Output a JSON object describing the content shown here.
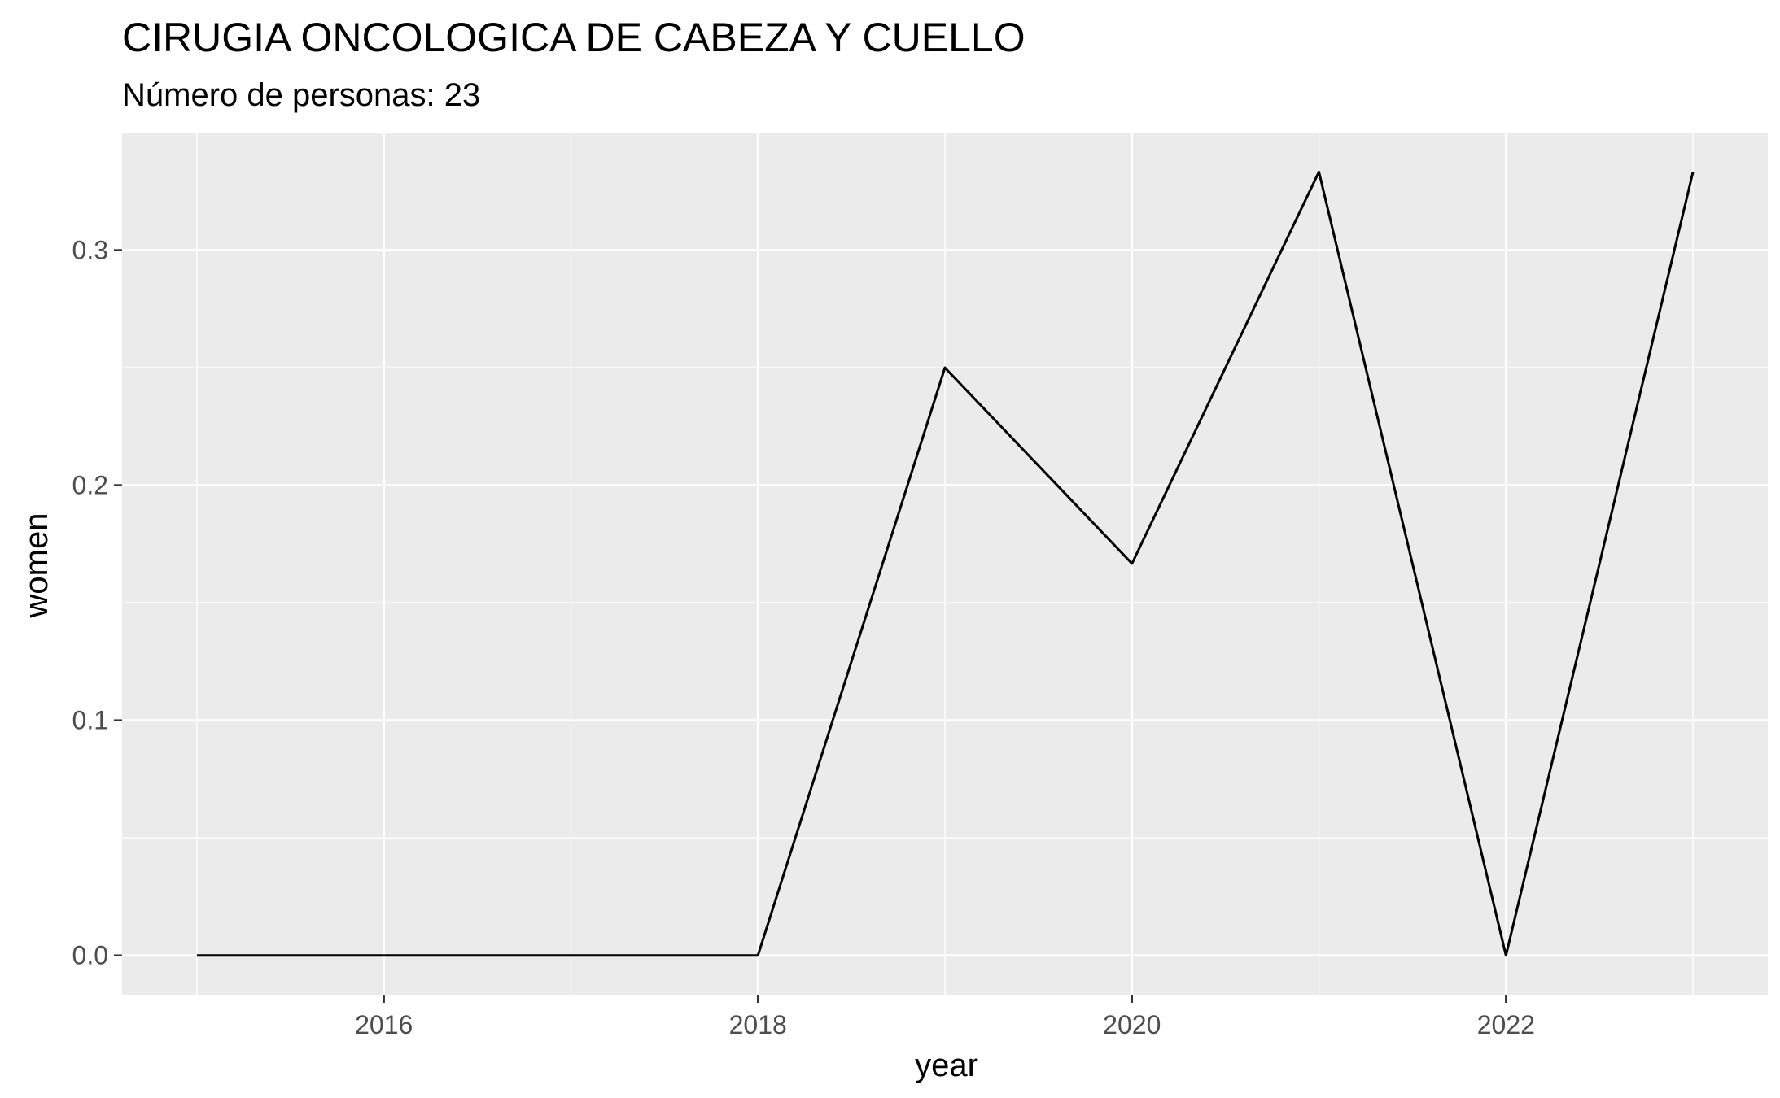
{
  "chart_data": {
    "type": "line",
    "title": "CIRUGIA ONCOLOGICA DE CABEZA Y CUELLO",
    "subtitle": "Número de personas: 23",
    "xlabel": "year",
    "ylabel": "women",
    "x": [
      2015,
      2016,
      2017,
      2018,
      2019,
      2020,
      2021,
      2022,
      2023
    ],
    "values": [
      0,
      0,
      0,
      0,
      0.25,
      0.1667,
      0.3333,
      0,
      0.3333
    ],
    "xlim": [
      2014.6,
      2023.4
    ],
    "ylim": [
      -0.0167,
      0.35
    ],
    "x_ticks": [
      2016,
      2018,
      2020,
      2022
    ],
    "x_tick_labels": [
      "2016",
      "2018",
      "2020",
      "2022"
    ],
    "y_ticks": [
      0,
      0.1,
      0.2,
      0.3
    ],
    "y_tick_labels": [
      "0.0",
      "0.1",
      "0.2",
      "0.3"
    ],
    "grid": true,
    "colors": {
      "panel": "#EBEBEB",
      "grid": "#FFFFFF",
      "line": "#000000",
      "tick_text": "#4D4D4D"
    }
  }
}
